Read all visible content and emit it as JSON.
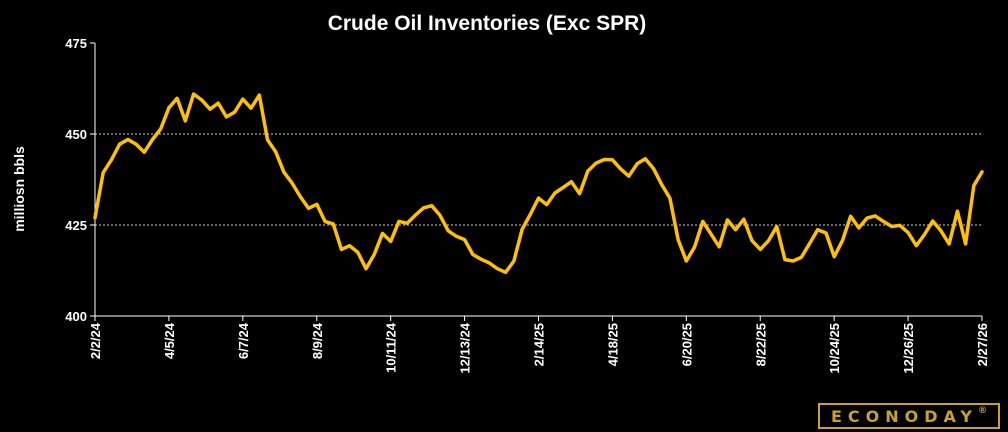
{
  "chart_data": {
    "type": "line",
    "title": "Crude Oil Inventories (Exc SPR)",
    "ylabel": "milliosn bbls",
    "xlabel": "",
    "ylim": [
      400,
      475
    ],
    "yticks": [
      400,
      425,
      450,
      475
    ],
    "gridlines": [
      425,
      450
    ],
    "grid": "horizontal dashed",
    "line_color": "#FFC000",
    "x_tick_labels": [
      "2/2/24",
      "4/5/24",
      "6/7/24",
      "8/9/24",
      "10/11/24",
      "12/13/24",
      "2/14/25",
      "4/18/25",
      "6/20/25",
      "8/22/25",
      "10/24/25",
      "12/26/25",
      "2/27/26"
    ],
    "x": [
      "2/2/24",
      "2/9/24",
      "2/16/24",
      "2/23/24",
      "3/1/24",
      "3/8/24",
      "3/15/24",
      "3/22/24",
      "3/29/24",
      "4/5/24",
      "4/12/24",
      "4/19/24",
      "4/26/24",
      "5/3/24",
      "5/10/24",
      "5/17/24",
      "5/24/24",
      "5/31/24",
      "6/7/24",
      "6/14/24",
      "6/21/24",
      "6/28/24",
      "7/5/24",
      "7/12/24",
      "7/19/24",
      "7/26/24",
      "8/2/24",
      "8/9/24",
      "8/16/24",
      "8/23/24",
      "8/30/24",
      "9/6/24",
      "9/13/24",
      "9/20/24",
      "9/27/24",
      "10/4/24",
      "10/11/24",
      "10/18/24",
      "10/25/24",
      "11/1/24",
      "11/8/24",
      "11/15/24",
      "11/22/24",
      "11/29/24",
      "12/6/24",
      "12/13/24",
      "12/20/24",
      "12/27/24",
      "1/3/25",
      "1/10/25",
      "1/17/25",
      "1/24/25",
      "1/31/25",
      "2/7/25",
      "2/14/25",
      "2/21/25",
      "2/28/25",
      "3/7/25",
      "3/14/25",
      "3/21/25",
      "3/28/25",
      "4/4/25",
      "4/11/25",
      "4/18/25",
      "4/25/25",
      "5/2/25",
      "5/9/25",
      "5/16/25",
      "5/23/25",
      "5/30/25",
      "6/6/25",
      "6/13/25",
      "6/20/25",
      "6/27/25",
      "7/4/25",
      "7/11/25",
      "7/18/25",
      "7/25/25",
      "8/1/25",
      "8/8/25",
      "8/15/25",
      "8/22/25",
      "8/29/25",
      "9/5/25",
      "9/12/25",
      "9/19/25",
      "9/26/25",
      "10/3/25",
      "10/10/25",
      "10/17/25",
      "10/24/25",
      "10/31/25",
      "11/7/25",
      "11/14/25",
      "11/21/25",
      "11/28/25",
      "12/5/25",
      "12/12/25",
      "12/19/25",
      "12/26/25",
      "1/2/26",
      "1/9/26",
      "1/16/26",
      "1/23/26",
      "1/30/26",
      "2/6/26",
      "2/13/26",
      "2/20/26",
      "2/27/26"
    ],
    "series": [
      {
        "values": [
          427.0,
          439.4,
          442.9,
          447.2,
          448.5,
          447.2,
          445.0,
          448.5,
          451.4,
          457.2,
          459.8,
          453.6,
          461.0,
          459.3,
          456.8,
          458.5,
          454.7,
          456.0,
          459.6,
          457.1,
          460.7,
          448.4,
          445.1,
          439.5,
          436.5,
          432.8,
          429.6,
          430.7,
          426.0,
          425.3,
          418.3,
          419.3,
          417.5,
          413.0,
          416.9,
          422.7,
          420.5,
          426.0,
          425.5,
          427.7,
          429.7,
          430.3,
          427.7,
          423.4,
          421.9,
          421.0,
          416.9,
          415.6,
          414.6,
          413.0,
          412.0,
          415.1,
          423.8,
          427.9,
          432.4,
          430.6,
          433.8,
          435.3,
          436.9,
          433.6,
          439.8,
          442.0,
          443.0,
          442.9,
          440.4,
          438.4,
          441.8,
          443.2,
          440.5,
          436.1,
          432.4,
          421.0,
          415.1,
          418.9,
          426.0,
          422.5,
          419.0,
          426.4,
          423.7,
          426.6,
          420.7,
          418.3,
          420.7,
          424.6,
          415.5,
          415.1,
          416.1,
          419.9,
          423.7,
          422.8,
          416.3,
          420.7,
          427.4,
          424.2,
          426.9,
          427.5,
          426.0,
          424.6,
          424.9,
          422.9,
          419.3,
          422.4,
          426.1,
          423.4,
          419.8,
          428.8,
          419.8,
          435.8,
          439.6
        ]
      }
    ]
  },
  "brand": {
    "logo_text": "ECONODAY",
    "registered_mark": "®"
  }
}
